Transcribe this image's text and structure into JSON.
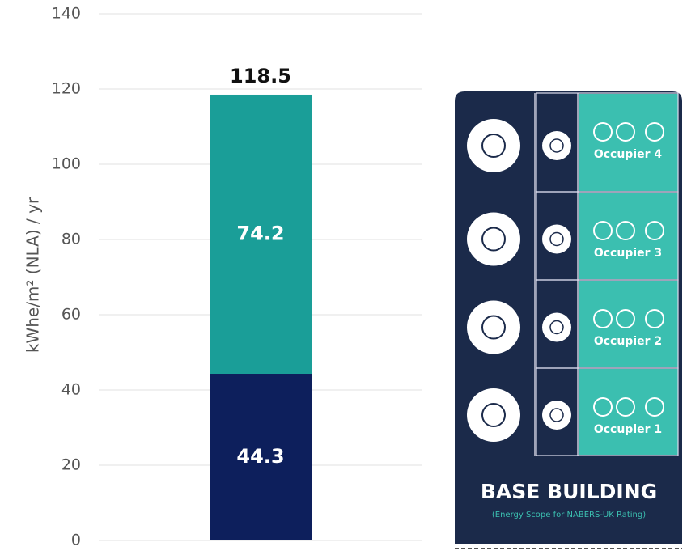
{
  "chart_data": {
    "type": "bar",
    "stacked": true,
    "y_label": "kWhe/m² (NLA) / yr",
    "categories": [
      null
    ],
    "series": [
      {
        "color": "#0d1f5c",
        "values": [
          44.3
        ]
      },
      {
        "color": "#1a9e98",
        "values": [
          74.2
        ]
      }
    ],
    "totals": [
      118.5
    ],
    "ylim": [
      0,
      140
    ],
    "yticks": [
      0,
      20,
      40,
      60,
      80,
      100,
      120,
      140
    ],
    "grid": true
  },
  "diagram": {
    "occupiers": [
      "Occupier 4",
      "Occupier 3",
      "Occupier 2",
      "Occupier 1"
    ],
    "title": "BASE BUILDING",
    "subtitle": "(Energy Scope for NABERS-UK Rating)"
  }
}
